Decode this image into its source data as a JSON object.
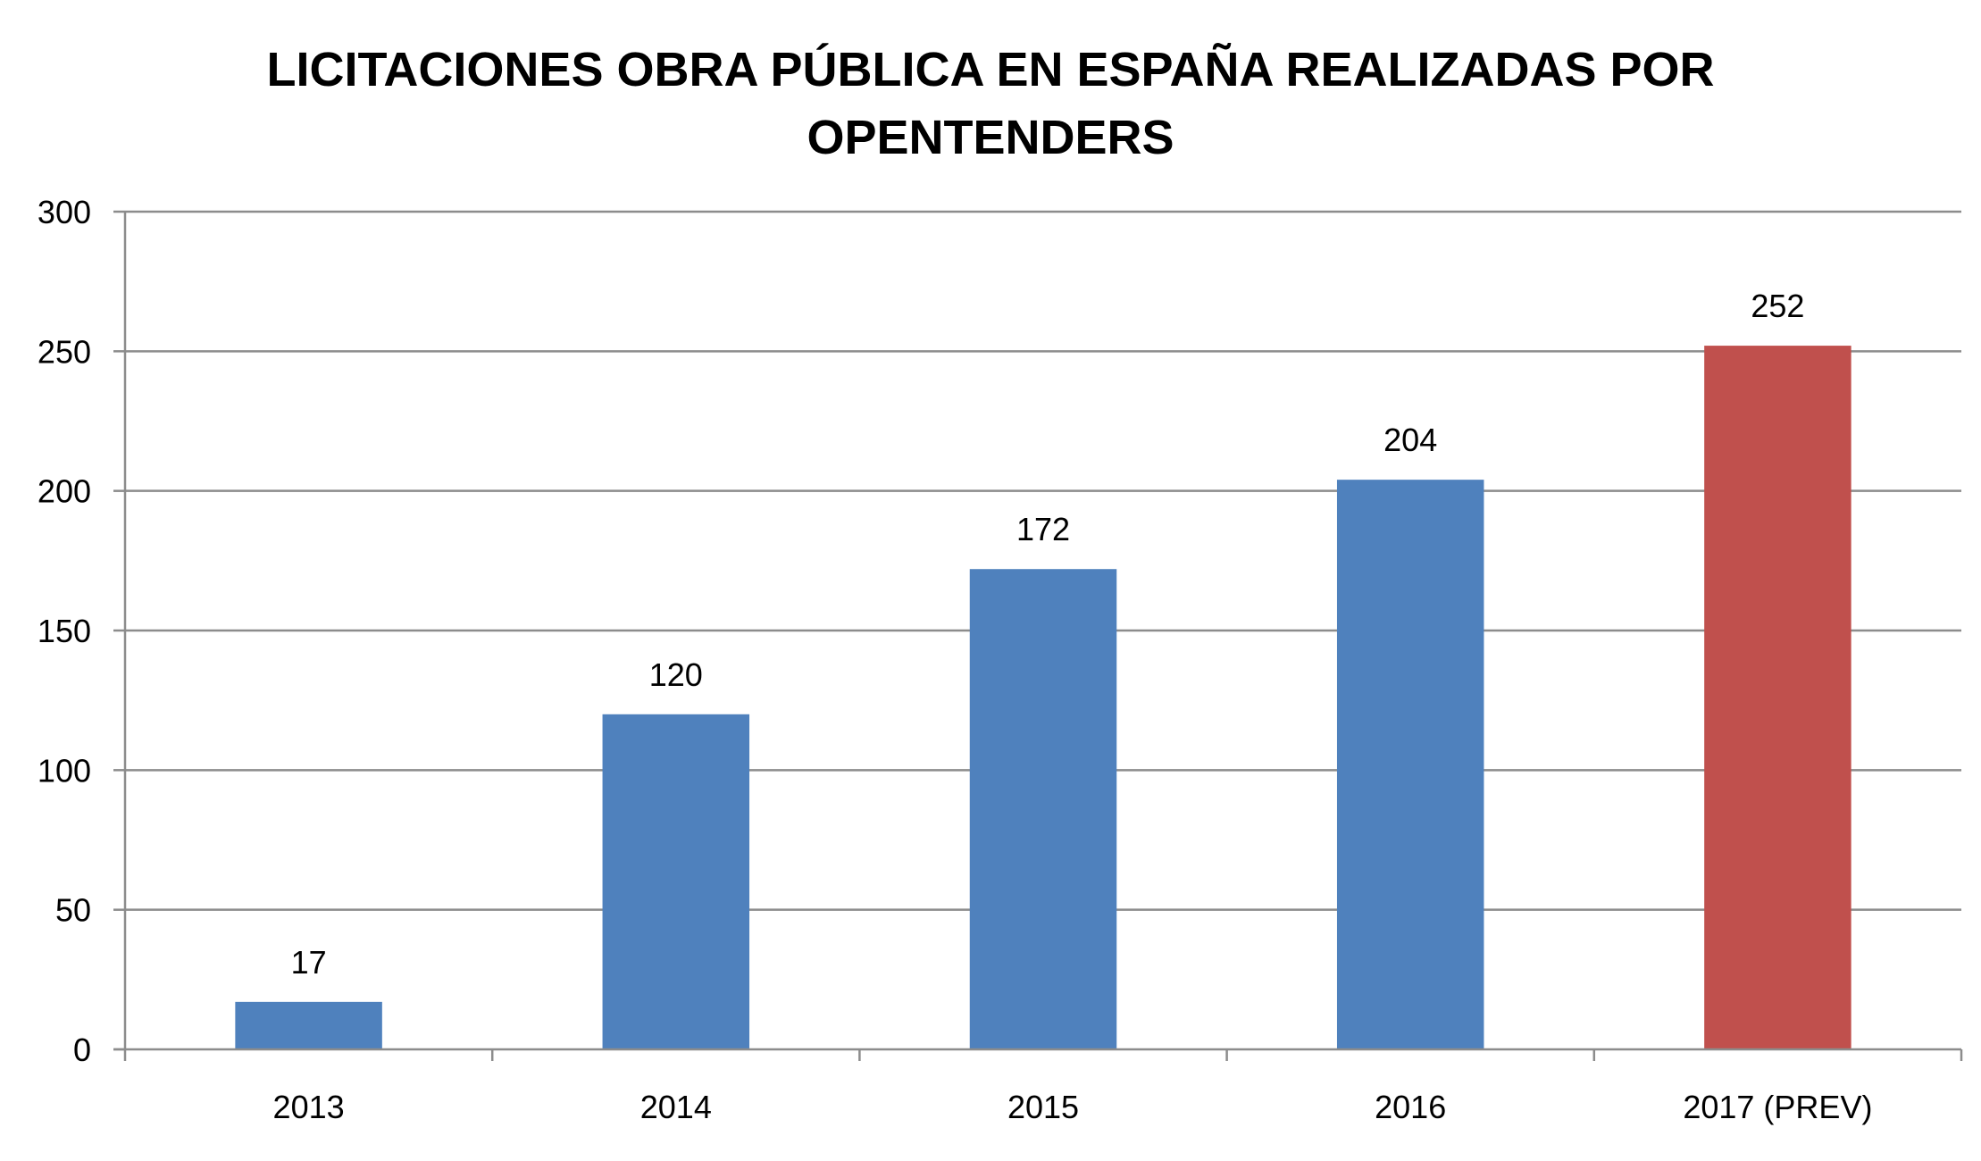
{
  "chart_data": {
    "type": "bar",
    "title_lines": [
      "LICITACIONES OBRA PÚBLICA EN ESPAÑA REALIZADAS POR",
      "OPENTENDERS"
    ],
    "categories": [
      "2013",
      "2014",
      "2015",
      "2016",
      "2017 (PREV)"
    ],
    "values": [
      17,
      120,
      172,
      204,
      252
    ],
    "data_labels": [
      "17",
      "120",
      "172",
      "204",
      "252"
    ],
    "bar_colors": [
      "#4F81BD",
      "#4F81BD",
      "#4F81BD",
      "#4F81BD",
      "#C0504D"
    ],
    "ylim": [
      0,
      300
    ],
    "yticks": [
      0,
      50,
      100,
      150,
      200,
      250,
      300
    ],
    "ytick_labels": [
      "0",
      "50",
      "100",
      "150",
      "200",
      "250",
      "300"
    ],
    "xlabel": "",
    "ylabel": "",
    "grid": true,
    "legend": "none"
  }
}
